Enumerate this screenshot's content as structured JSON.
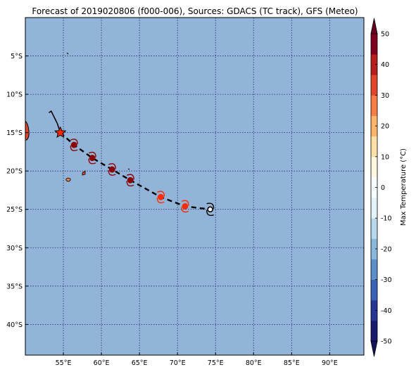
{
  "title": "Forecast of 2019020806 (f000-006), Sources: GDACS (TC track), GFS (Meteo)",
  "map": {
    "lon_range": [
      50,
      94.5
    ],
    "lat_range": [
      -44,
      0
    ],
    "ocean_color": "#92b4d8",
    "grid_color": "#1f2f5f",
    "grid": true,
    "lon_ticks": [
      {
        "value": 55,
        "label": "55°E"
      },
      {
        "value": 60,
        "label": "60°E"
      },
      {
        "value": 65,
        "label": "65°E"
      },
      {
        "value": 70,
        "label": "70°E"
      },
      {
        "value": 75,
        "label": "75°E"
      },
      {
        "value": 80,
        "label": "80°E"
      },
      {
        "value": 85,
        "label": "85°E"
      },
      {
        "value": 90,
        "label": "90°E"
      }
    ],
    "lat_ticks": [
      {
        "value": -5,
        "label": "5°S"
      },
      {
        "value": -10,
        "label": "10°S"
      },
      {
        "value": -15,
        "label": "15°S"
      },
      {
        "value": -20,
        "label": "20°S"
      },
      {
        "value": -25,
        "label": "25°S"
      },
      {
        "value": -30,
        "label": "30°S"
      },
      {
        "value": -35,
        "label": "35°S"
      },
      {
        "value": -40,
        "label": "40°S"
      }
    ]
  },
  "track": {
    "past": [
      [
        53.1,
        -12.4
      ],
      [
        53.4,
        -12.2
      ],
      [
        53.8,
        -13.0
      ],
      [
        54.2,
        -13.8
      ],
      [
        54.6,
        -15.0
      ]
    ],
    "forecast": [
      [
        54.6,
        -15.0
      ],
      [
        56.4,
        -16.6
      ],
      [
        58.8,
        -18.3
      ],
      [
        61.4,
        -19.8
      ],
      [
        63.8,
        -21.2
      ],
      [
        67.8,
        -23.4
      ],
      [
        71.0,
        -24.6
      ],
      [
        74.3,
        -25.0
      ]
    ],
    "current_position": {
      "lon": 54.6,
      "lat": -15.0,
      "marker": "star-icon",
      "color": "#ff2a00"
    },
    "end_position": {
      "lon": 74.3,
      "lat": -25.0,
      "marker": "circle-icon",
      "color": "#ffffff"
    },
    "storm_symbols": [
      {
        "lon": 56.4,
        "lat": -16.6,
        "color": "#8b0000"
      },
      {
        "lon": 58.8,
        "lat": -18.3,
        "color": "#8b0000"
      },
      {
        "lon": 61.4,
        "lat": -19.8,
        "color": "#8b0000"
      },
      {
        "lon": 63.8,
        "lat": -21.2,
        "color": "#8b0000"
      },
      {
        "lon": 67.8,
        "lat": -23.4,
        "color": "#ff2a00"
      },
      {
        "lon": 71.0,
        "lat": -24.6,
        "color": "#ff2a00"
      }
    ]
  },
  "colorbar": {
    "label": "Max Temperature (°C)",
    "min": -50,
    "max": 50,
    "ticks": [
      50,
      40,
      30,
      20,
      10,
      0,
      -10,
      -20,
      -30,
      -40,
      -50
    ],
    "colors": [
      "#1b1b6e",
      "#283593",
      "#3a62b3",
      "#5b8fc8",
      "#8bb8da",
      "#b9d8ea",
      "#e3f2f8",
      "#f7feff",
      "#fff7df",
      "#fee0a8",
      "#fdb56b",
      "#f67d45",
      "#e0452b",
      "#b81d1d",
      "#800020"
    ],
    "extend_low_color": "#14145a",
    "extend_high_color": "#6a0020"
  }
}
